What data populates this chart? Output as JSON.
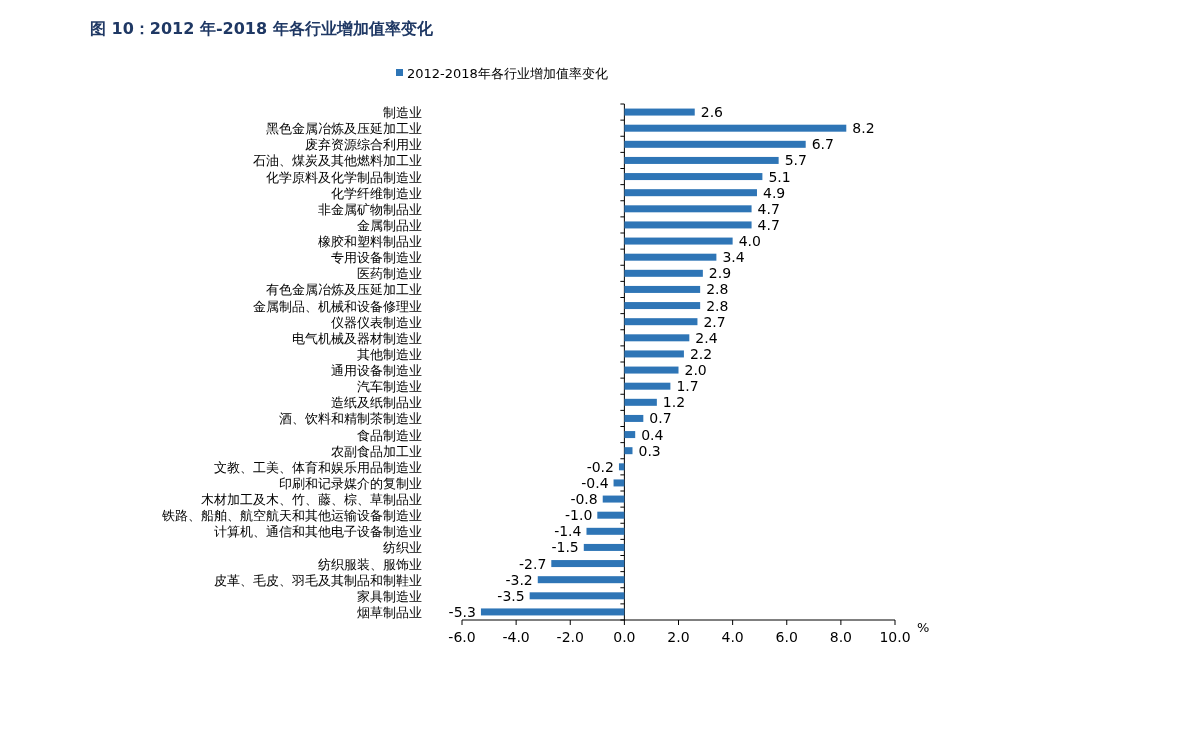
{
  "chart_data": {
    "type": "bar",
    "orientation": "horizontal",
    "title": "图 10：2012 年-2018 年各行业增加值率变化",
    "xlabel": "%",
    "categories": [
      "制造业",
      "黑色金属冶炼及压延加工业",
      "废弃资源综合利用业",
      "石油、煤炭及其他燃料加工业",
      "化学原料及化学制品制造业",
      "化学纤维制造业",
      "非金属矿物制品业",
      "金属制品业",
      "橡胶和塑料制品业",
      "专用设备制造业",
      "医药制造业",
      "有色金属冶炼及压延加工业",
      "金属制品、机械和设备修理业",
      "仪器仪表制造业",
      "电气机械及器材制造业",
      "其他制造业",
      "通用设备制造业",
      "汽车制造业",
      "造纸及纸制品业",
      "酒、饮料和精制茶制造业",
      "食品制造业",
      "农副食品加工业",
      "文教、工美、体育和娱乐用品制造业",
      "印刷和记录媒介的复制业",
      "木材加工及木、竹、藤、棕、草制品业",
      "铁路、船舶、航空航天和其他运输设备制造业",
      "计算机、通信和其他电子设备制造业",
      "纺织业",
      "纺织服装、服饰业",
      "皮革、毛皮、羽毛及其制品和制鞋业",
      "家具制造业",
      "烟草制品业"
    ],
    "series": [
      {
        "name": "2012-2018年各行业增加值率变化",
        "color": "#2e75b6",
        "values": [
          2.6,
          8.2,
          6.7,
          5.7,
          5.1,
          4.9,
          4.7,
          4.7,
          4.0,
          3.4,
          2.9,
          2.8,
          2.8,
          2.7,
          2.4,
          2.2,
          2.0,
          1.7,
          1.2,
          0.7,
          0.4,
          0.3,
          -0.2,
          -0.4,
          -0.8,
          -1.0,
          -1.4,
          -1.5,
          -2.7,
          -3.2,
          -3.5,
          -5.3
        ]
      }
    ],
    "xlim": [
      -6,
      10
    ],
    "xticks": [
      {
        "value": -6,
        "label": "-6.0"
      },
      {
        "value": -4,
        "label": "-4.0"
      },
      {
        "value": -2,
        "label": "-2.0"
      },
      {
        "value": 0,
        "label": "0.0"
      },
      {
        "value": 2,
        "label": "2.0"
      },
      {
        "value": 4,
        "label": "4.0"
      },
      {
        "value": 6,
        "label": "6.0"
      },
      {
        "value": 8,
        "label": "8.0"
      },
      {
        "value": 10,
        "label": "10.0"
      }
    ],
    "value_labels": [
      "2.6",
      "8.2",
      "6.7",
      "5.7",
      "5.1",
      "4.9",
      "4.7",
      "4.7",
      "4.0",
      "3.4",
      "2.9",
      "2.8",
      "2.8",
      "2.7",
      "2.4",
      "2.2",
      "2.0",
      "1.7",
      "1.2",
      "0.7",
      "0.4",
      "0.3",
      "-0.2",
      "-0.4",
      "-0.8",
      "-1.0",
      "-1.4",
      "-1.5",
      "-2.7",
      "-3.2",
      "-3.5",
      "-5.3"
    ],
    "legend": "top"
  }
}
